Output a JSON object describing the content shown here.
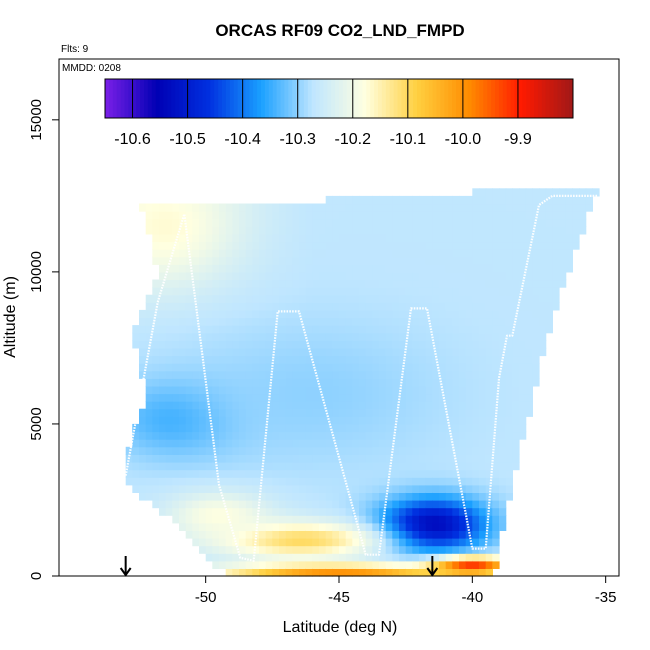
{
  "chart_data": {
    "type": "heatmap",
    "title": "ORCAS RF09 CO2_LND_FMPD",
    "flights_label": "Flts: 9",
    "date_label": "MMDD: 0208",
    "xlabel": "Latitude (deg N)",
    "ylabel": "Altitude (m)",
    "xlim": [
      -55.5,
      -34.5
    ],
    "ylim": [
      0,
      17000
    ],
    "x_ticks": [
      -50,
      -45,
      -40,
      -35
    ],
    "x_tick_labels": [
      "-50",
      "-45",
      "-40",
      "-35"
    ],
    "y_ticks": [
      0,
      5000,
      10000,
      15000
    ],
    "y_tick_labels": [
      "0",
      "5000",
      "10000",
      "15000"
    ],
    "colorbar": {
      "min": -10.65,
      "max": -9.8,
      "ticks": [
        -10.6,
        -10.5,
        -10.4,
        -10.3,
        -10.2,
        -10.1,
        -10.0,
        -9.9
      ],
      "tick_labels": [
        "-10.6",
        "-10.5",
        "-10.4",
        "-10.3",
        "-10.2",
        "-10.1",
        "-10.0",
        "-9.9"
      ],
      "colors": [
        "#7b1fe8",
        "#0000b4",
        "#0030e0",
        "#1aa0ff",
        "#bfe6ff",
        "#ffffe0",
        "#ffd040",
        "#ff8c00",
        "#ff1a00",
        "#a01818"
      ]
    },
    "field_extent": {
      "top_edge": [
        [
          -52.4,
          12200
        ],
        [
          -47.0,
          12300
        ],
        [
          -41.0,
          12600
        ],
        [
          -37.0,
          12700
        ],
        [
          -35.3,
          12750
        ]
      ],
      "right_edge": [
        [
          -35.3,
          12700
        ],
        [
          -37.0,
          8500
        ],
        [
          -38.5,
          3000
        ],
        [
          -39.2,
          0
        ]
      ],
      "bottom_edge": [
        [
          -39.2,
          0
        ],
        [
          -49.2,
          0
        ]
      ],
      "left_edge": [
        [
          -49.2,
          0
        ],
        [
          -51.5,
          2000
        ],
        [
          -53.0,
          3000
        ],
        [
          -53.0,
          4000
        ],
        [
          -52.2,
          6000
        ],
        [
          -52.8,
          8000
        ],
        [
          -51.8,
          10000
        ],
        [
          -52.4,
          12200
        ]
      ]
    },
    "field_features": [
      {
        "lat": -41.5,
        "alt": 1700,
        "value": -10.55,
        "radius_lat": 2.0,
        "radius_alt": 900
      },
      {
        "lat": -51.0,
        "alt": 5200,
        "value": -10.36,
        "radius_lat": 2.5,
        "radius_alt": 1300
      },
      {
        "lat": -46.0,
        "alt": 6000,
        "value": -10.3,
        "radius_lat": 5.0,
        "radius_alt": 2500
      },
      {
        "lat": -51.5,
        "alt": 11500,
        "value": -10.17,
        "radius_lat": 2.5,
        "radius_alt": 1800
      },
      {
        "lat": -46.5,
        "alt": 1200,
        "value": -10.1,
        "radius_lat": 3.0,
        "radius_alt": 600
      },
      {
        "lat": -49.5,
        "alt": 2000,
        "value": -10.18,
        "radius_lat": 2.0,
        "radius_alt": 800
      },
      {
        "lat": -45.0,
        "alt": 100,
        "value": -10.0,
        "radius_lat": 4.5,
        "radius_alt": 300
      },
      {
        "lat": -40.0,
        "alt": 350,
        "value": -9.92,
        "radius_lat": 1.5,
        "radius_alt": 300
      }
    ],
    "flight_track": [
      [
        -53.0,
        3300
      ],
      [
        -51.8,
        9000
      ],
      [
        -50.8,
        11900
      ],
      [
        -49.5,
        3000
      ],
      [
        -48.7,
        600
      ],
      [
        -48.2,
        500
      ],
      [
        -47.3,
        8700
      ],
      [
        -46.5,
        8700
      ],
      [
        -44.0,
        700
      ],
      [
        -43.5,
        700
      ],
      [
        -42.3,
        8800
      ],
      [
        -41.7,
        8800
      ],
      [
        -40.0,
        900
      ],
      [
        -39.5,
        900
      ],
      [
        -39.0,
        6500
      ],
      [
        -38.7,
        7900
      ],
      [
        -38.5,
        7900
      ],
      [
        -37.5,
        12200
      ],
      [
        -37.0,
        12500
      ],
      [
        -35.3,
        12500
      ]
    ],
    "arrow_markers": [
      -53.0,
      -41.5
    ]
  }
}
